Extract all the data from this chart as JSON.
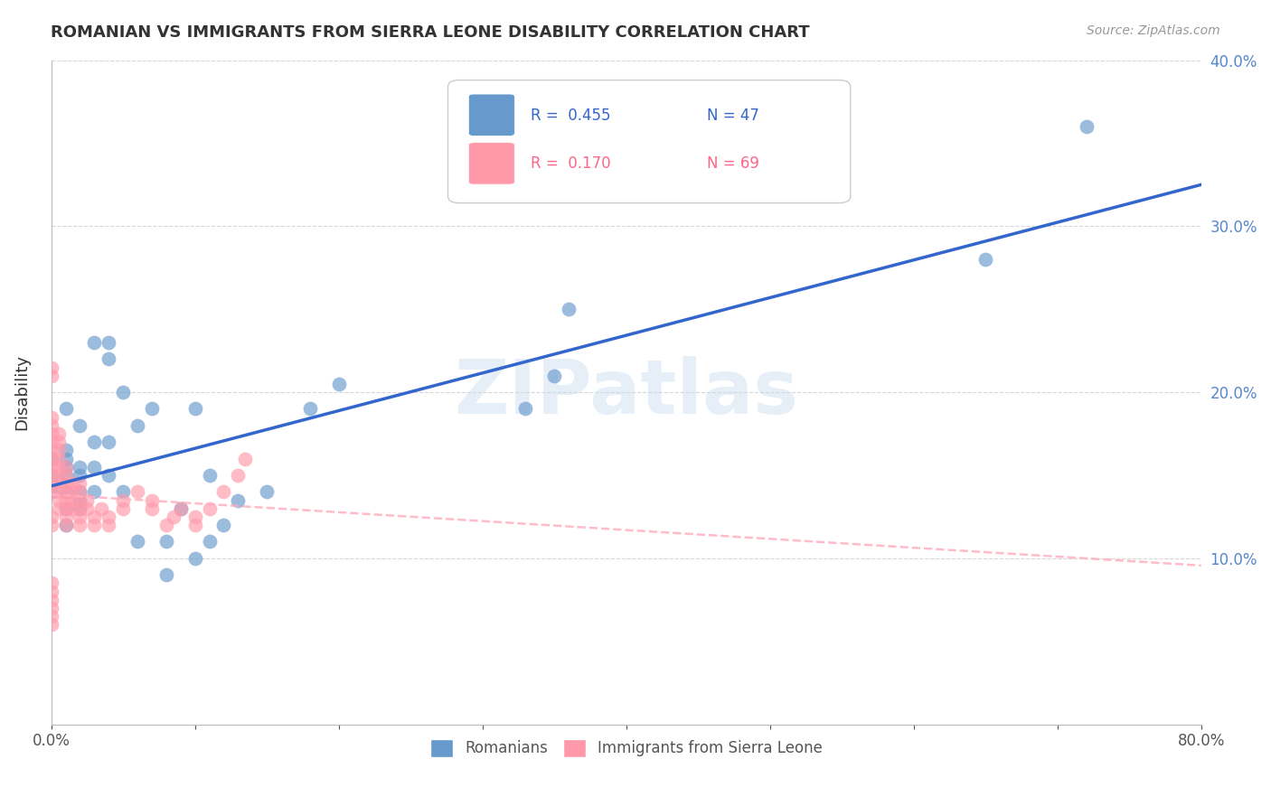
{
  "title": "ROMANIAN VS IMMIGRANTS FROM SIERRA LEONE DISABILITY CORRELATION CHART",
  "source": "Source: ZipAtlas.com",
  "ylabel": "Disability",
  "xlim": [
    0,
    0.8
  ],
  "ylim": [
    0,
    0.4
  ],
  "xticks": [
    0.0,
    0.1,
    0.2,
    0.3,
    0.4,
    0.5,
    0.6,
    0.7,
    0.8
  ],
  "xticklabels": [
    "0.0%",
    "",
    "",
    "",
    "",
    "",
    "",
    "",
    "80.0%"
  ],
  "yticks": [
    0.0,
    0.1,
    0.2,
    0.3,
    0.4
  ],
  "yticklabels_right": [
    "",
    "10.0%",
    "20.0%",
    "30.0%",
    "40.0%"
  ],
  "legend_labels": [
    "Romanians",
    "Immigrants from Sierra Leone"
  ],
  "R_romanian": 0.455,
  "N_romanian": 47,
  "R_sierra": 0.17,
  "N_sierra": 69,
  "color_romanian": "#6699CC",
  "color_sierra": "#FF99AA",
  "color_line_romanian": "#3366CC",
  "color_line_sierra": "#FFB0C0",
  "background_color": "#FFFFFF",
  "watermark": "ZIPatlas",
  "romanians_x": [
    0.0,
    0.0,
    0.0,
    0.01,
    0.01,
    0.01,
    0.01,
    0.01,
    0.01,
    0.01,
    0.01,
    0.02,
    0.02,
    0.02,
    0.02,
    0.02,
    0.02,
    0.03,
    0.03,
    0.03,
    0.03,
    0.04,
    0.04,
    0.04,
    0.04,
    0.05,
    0.05,
    0.06,
    0.06,
    0.07,
    0.08,
    0.08,
    0.09,
    0.1,
    0.1,
    0.11,
    0.11,
    0.12,
    0.13,
    0.15,
    0.18,
    0.2,
    0.33,
    0.35,
    0.36,
    0.65,
    0.72
  ],
  "romanians_y": [
    0.14,
    0.15,
    0.16,
    0.12,
    0.13,
    0.14,
    0.15,
    0.155,
    0.16,
    0.165,
    0.19,
    0.13,
    0.135,
    0.14,
    0.15,
    0.155,
    0.18,
    0.14,
    0.155,
    0.17,
    0.23,
    0.15,
    0.17,
    0.22,
    0.23,
    0.14,
    0.2,
    0.11,
    0.18,
    0.19,
    0.09,
    0.11,
    0.13,
    0.1,
    0.19,
    0.11,
    0.15,
    0.12,
    0.135,
    0.14,
    0.19,
    0.205,
    0.19,
    0.21,
    0.25,
    0.28,
    0.36
  ],
  "sierra_x": [
    0.0,
    0.0,
    0.0,
    0.0,
    0.0,
    0.0,
    0.0,
    0.0,
    0.0,
    0.0,
    0.0,
    0.0,
    0.0,
    0.0,
    0.0,
    0.0,
    0.0,
    0.0,
    0.0,
    0.0,
    0.005,
    0.005,
    0.005,
    0.005,
    0.005,
    0.005,
    0.005,
    0.005,
    0.005,
    0.005,
    0.01,
    0.01,
    0.01,
    0.01,
    0.01,
    0.01,
    0.01,
    0.01,
    0.015,
    0.015,
    0.015,
    0.015,
    0.02,
    0.02,
    0.02,
    0.02,
    0.02,
    0.02,
    0.025,
    0.025,
    0.03,
    0.03,
    0.035,
    0.04,
    0.04,
    0.05,
    0.05,
    0.06,
    0.07,
    0.07,
    0.08,
    0.085,
    0.09,
    0.1,
    0.1,
    0.11,
    0.12,
    0.13,
    0.135
  ],
  "sierra_y": [
    0.14,
    0.145,
    0.15,
    0.155,
    0.16,
    0.165,
    0.17,
    0.175,
    0.18,
    0.185,
    0.12,
    0.125,
    0.08,
    0.085,
    0.06,
    0.065,
    0.07,
    0.075,
    0.21,
    0.215,
    0.13,
    0.135,
    0.14,
    0.145,
    0.15,
    0.155,
    0.16,
    0.165,
    0.17,
    0.175,
    0.12,
    0.125,
    0.13,
    0.135,
    0.14,
    0.145,
    0.15,
    0.155,
    0.13,
    0.135,
    0.14,
    0.145,
    0.12,
    0.125,
    0.13,
    0.135,
    0.14,
    0.145,
    0.13,
    0.135,
    0.12,
    0.125,
    0.13,
    0.12,
    0.125,
    0.13,
    0.135,
    0.14,
    0.13,
    0.135,
    0.12,
    0.125,
    0.13,
    0.12,
    0.125,
    0.13,
    0.14,
    0.15,
    0.16
  ]
}
